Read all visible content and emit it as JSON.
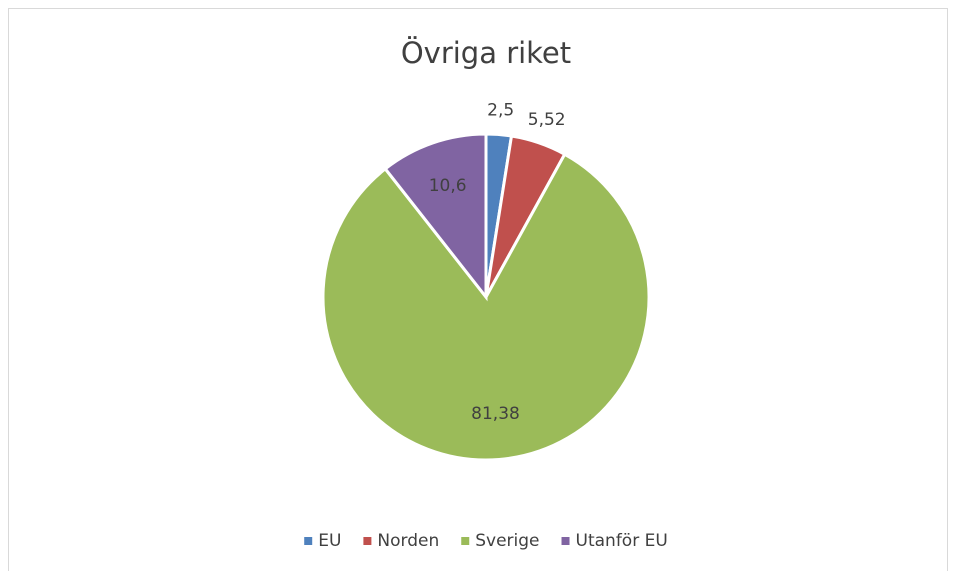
{
  "chart_data": {
    "type": "pie",
    "title": "Övriga riket",
    "categories": [
      "EU",
      "Norden",
      "Sverige",
      "Utanför EU"
    ],
    "values": [
      2.5,
      5.52,
      81.38,
      10.6
    ],
    "value_labels": [
      "2,5",
      "5,52",
      "81,38",
      "10,6"
    ],
    "colors": [
      "#4f81bd",
      "#c0504d",
      "#9bbb59",
      "#8064a2"
    ],
    "legend": "bottom"
  }
}
